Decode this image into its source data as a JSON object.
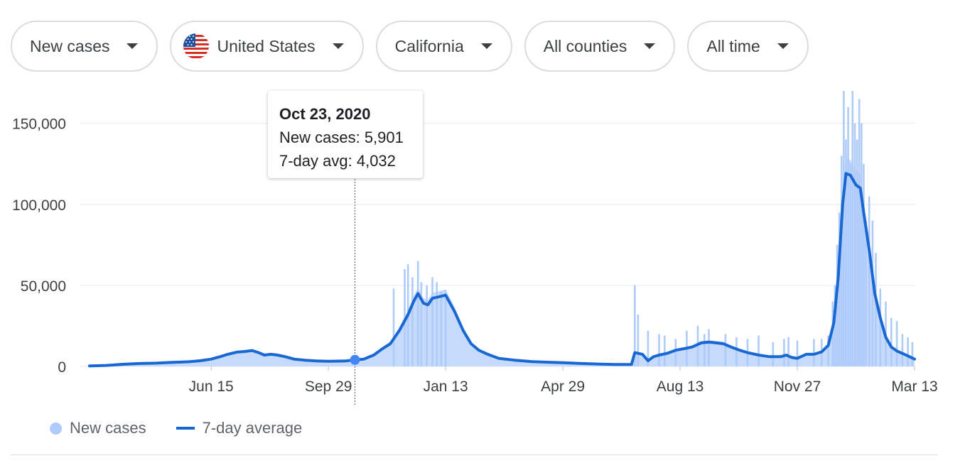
{
  "filters": [
    {
      "label": "New cases",
      "has_flag": false
    },
    {
      "label": "United States",
      "has_flag": true,
      "flag_icon": "us-flag-icon"
    },
    {
      "label": "California",
      "has_flag": false
    },
    {
      "label": "All counties",
      "has_flag": false
    },
    {
      "label": "All time",
      "has_flag": false
    }
  ],
  "tooltip": {
    "date": "Oct 23, 2020",
    "new_cases": "New cases: 5,901",
    "avg": "7-day avg: 4,032"
  },
  "legend": {
    "new_cases_label": "New cases",
    "avg_label": "7-day average"
  },
  "colors": {
    "bar": "#aecbfa",
    "area": "#c6dafc",
    "line": "#1967d2",
    "grid": "#e8eaed",
    "text": "#3c4043"
  },
  "chart_data": {
    "type": "bar",
    "title": "",
    "xlabel": "",
    "ylabel": "",
    "ylim": [
      0,
      170000
    ],
    "yticks": [
      0,
      50000,
      100000,
      150000
    ],
    "ytick_labels": [
      "0",
      "50,000",
      "100,000",
      "150,000"
    ],
    "x_start": "2020-02-26",
    "x_end": "2022-03-13",
    "xticks": [
      {
        "label": "Jun 15",
        "day": 110
      },
      {
        "label": "Sep 29",
        "day": 216
      },
      {
        "label": "Jan 13",
        "day": 322
      },
      {
        "label": "Apr 29",
        "day": 428
      },
      {
        "label": "Aug 13",
        "day": 534
      },
      {
        "label": "Nov 27",
        "day": 640
      },
      {
        "label": "Mar 13",
        "day": 746
      }
    ],
    "highlight": {
      "day": 240,
      "date": "Oct 23, 2020",
      "new_cases": 5901,
      "avg": 4032
    },
    "series": [
      {
        "name": "7-day average",
        "points": [
          [
            0,
            300
          ],
          [
            15,
            600
          ],
          [
            30,
            1300
          ],
          [
            45,
            1800
          ],
          [
            60,
            2000
          ],
          [
            75,
            2500
          ],
          [
            90,
            2900
          ],
          [
            100,
            3500
          ],
          [
            110,
            4500
          ],
          [
            118,
            6000
          ],
          [
            125,
            7500
          ],
          [
            133,
            8800
          ],
          [
            140,
            9200
          ],
          [
            147,
            9800
          ],
          [
            153,
            8500
          ],
          [
            158,
            7000
          ],
          [
            164,
            7500
          ],
          [
            170,
            7000
          ],
          [
            177,
            6000
          ],
          [
            185,
            4500
          ],
          [
            195,
            3800
          ],
          [
            205,
            3400
          ],
          [
            216,
            3200
          ],
          [
            225,
            3300
          ],
          [
            232,
            3400
          ],
          [
            240,
            4032
          ],
          [
            248,
            4500
          ],
          [
            257,
            7000
          ],
          [
            265,
            11000
          ],
          [
            272,
            14000
          ],
          [
            280,
            22000
          ],
          [
            288,
            32000
          ],
          [
            293,
            40000
          ],
          [
            297,
            45000
          ],
          [
            302,
            39000
          ],
          [
            306,
            38000
          ],
          [
            310,
            42000
          ],
          [
            316,
            43000
          ],
          [
            322,
            44000
          ],
          [
            330,
            34000
          ],
          [
            338,
            22000
          ],
          [
            345,
            14000
          ],
          [
            352,
            10000
          ],
          [
            360,
            7500
          ],
          [
            370,
            5000
          ],
          [
            385,
            3800
          ],
          [
            400,
            3000
          ],
          [
            415,
            2600
          ],
          [
            428,
            2300
          ],
          [
            445,
            1800
          ],
          [
            460,
            1500
          ],
          [
            475,
            1200
          ],
          [
            490,
            1200
          ],
          [
            493,
            8500
          ],
          [
            500,
            7500
          ],
          [
            505,
            3500
          ],
          [
            510,
            6000
          ],
          [
            515,
            7000
          ],
          [
            522,
            8000
          ],
          [
            530,
            10000
          ],
          [
            538,
            11000
          ],
          [
            545,
            12000
          ],
          [
            553,
            14500
          ],
          [
            560,
            15000
          ],
          [
            567,
            14500
          ],
          [
            573,
            14000
          ],
          [
            580,
            12000
          ],
          [
            588,
            10000
          ],
          [
            595,
            8500
          ],
          [
            605,
            7000
          ],
          [
            615,
            6000
          ],
          [
            625,
            6000
          ],
          [
            630,
            7000
          ],
          [
            635,
            5500
          ],
          [
            640,
            5000
          ],
          [
            648,
            7500
          ],
          [
            655,
            7500
          ],
          [
            662,
            9000
          ],
          [
            668,
            13000
          ],
          [
            673,
            27000
          ],
          [
            677,
            55000
          ],
          [
            681,
            100000
          ],
          [
            684,
            119000
          ],
          [
            688,
            118000
          ],
          [
            693,
            112000
          ],
          [
            697,
            110000
          ],
          [
            700,
            95000
          ],
          [
            705,
            72000
          ],
          [
            710,
            45000
          ],
          [
            715,
            30000
          ],
          [
            720,
            18000
          ],
          [
            725,
            12000
          ],
          [
            730,
            9500
          ],
          [
            735,
            8000
          ],
          [
            740,
            6500
          ],
          [
            746,
            4500
          ]
        ]
      },
      {
        "name": "New cases",
        "spikes": [
          [
            275,
            48000
          ],
          [
            285,
            60000
          ],
          [
            288,
            63000
          ],
          [
            292,
            55000
          ],
          [
            297,
            65000
          ],
          [
            300,
            52000
          ],
          [
            305,
            50000
          ],
          [
            310,
            55000
          ],
          [
            314,
            52000
          ],
          [
            318,
            46000
          ],
          [
            322,
            47000
          ],
          [
            493,
            50000
          ],
          [
            496,
            32000
          ],
          [
            505,
            22000
          ],
          [
            515,
            20000
          ],
          [
            520,
            19000
          ],
          [
            530,
            17000
          ],
          [
            540,
            22000
          ],
          [
            550,
            25000
          ],
          [
            556,
            20000
          ],
          [
            560,
            23000
          ],
          [
            575,
            20000
          ],
          [
            585,
            18000
          ],
          [
            595,
            17000
          ],
          [
            605,
            19000
          ],
          [
            618,
            15000
          ],
          [
            628,
            17000
          ],
          [
            632,
            18000
          ],
          [
            640,
            16000
          ],
          [
            655,
            17000
          ],
          [
            662,
            17000
          ],
          [
            668,
            19000
          ],
          [
            672,
            40000
          ],
          [
            674,
            50000
          ],
          [
            676,
            75000
          ],
          [
            678,
            95000
          ],
          [
            680,
            130000
          ],
          [
            682,
            170000
          ],
          [
            684,
            140000
          ],
          [
            686,
            160000
          ],
          [
            688,
            125000
          ],
          [
            690,
            170000
          ],
          [
            692,
            150000
          ],
          [
            694,
            140000
          ],
          [
            696,
            165000
          ],
          [
            698,
            150000
          ],
          [
            700,
            125000
          ],
          [
            702,
            90000
          ],
          [
            705,
            105000
          ],
          [
            708,
            90000
          ],
          [
            711,
            70000
          ],
          [
            715,
            48000
          ],
          [
            720,
            40000
          ],
          [
            725,
            30000
          ],
          [
            730,
            28000
          ],
          [
            735,
            20000
          ],
          [
            740,
            18000
          ],
          [
            744,
            15000
          ]
        ]
      }
    ]
  }
}
